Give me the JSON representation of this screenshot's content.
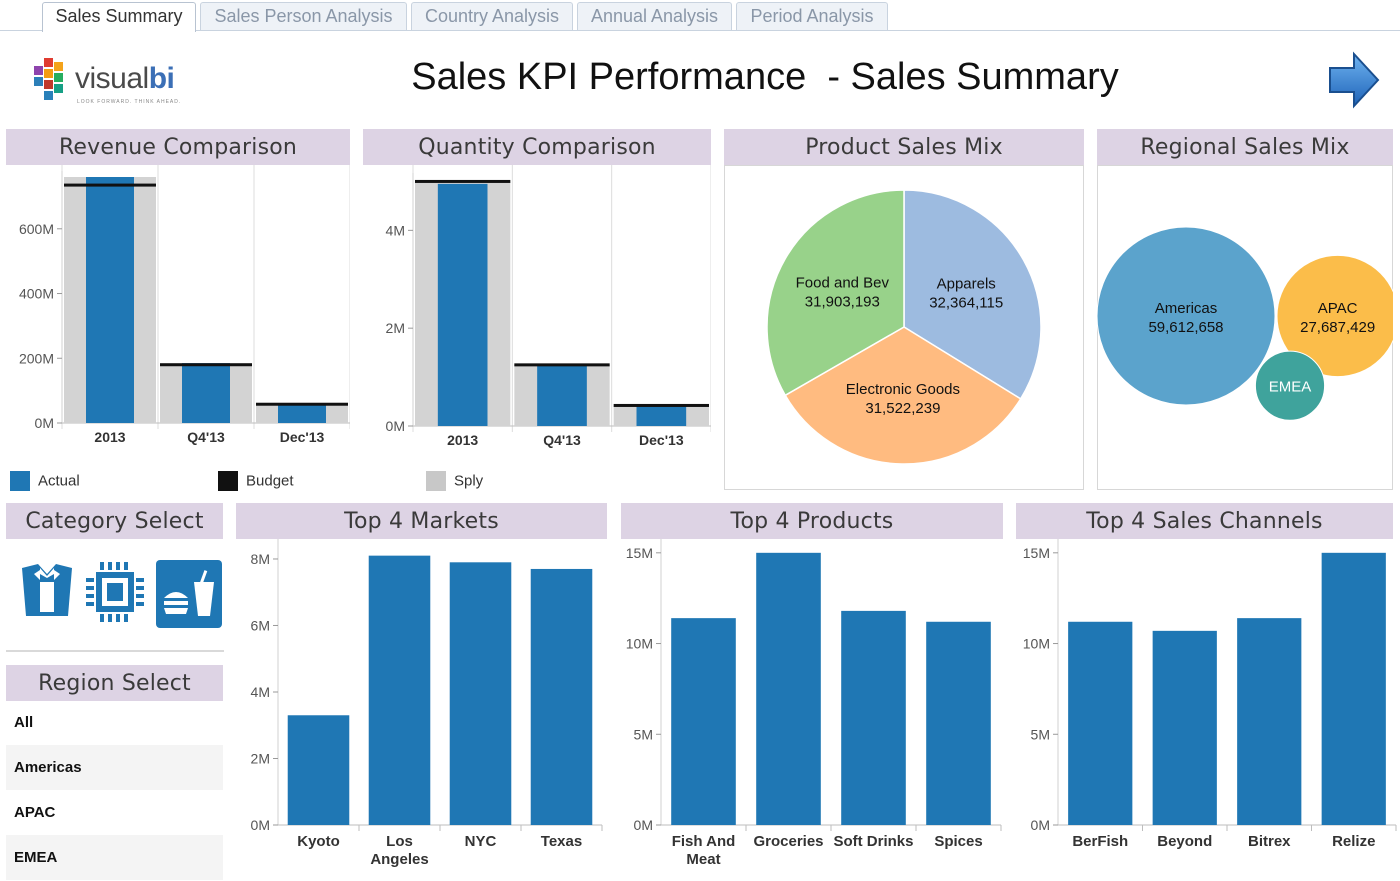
{
  "tabs": [
    {
      "label": "Sales Summary",
      "active": true
    },
    {
      "label": "Sales Person Analysis",
      "active": false
    },
    {
      "label": "Country Analysis",
      "active": false
    },
    {
      "label": "Annual Analysis",
      "active": false
    },
    {
      "label": "Period Analysis",
      "active": false
    }
  ],
  "brand": {
    "name_a": "visual",
    "name_b": "bi",
    "tagline": "LOOK FORWARD. THINK AHEAD."
  },
  "header": {
    "title": "Sales KPI Performance  - Sales Summary",
    "nav_icon": "next-arrow-icon"
  },
  "colors": {
    "actual": "#1f77b4",
    "budget": "#111111",
    "sply": "#d3d3d3",
    "panel_header": "#ddd3e4"
  },
  "panels": {
    "revenue": "Revenue Comparison",
    "quantity": "Quantity Comparison",
    "product_mix": "Product Sales Mix",
    "regional_mix": "Regional Sales  Mix",
    "category_select": "Category Select",
    "region_select": "Region Select",
    "top_markets": "Top 4 Markets",
    "top_products": "Top 4 Products",
    "top_channels": "Top 4 Sales Channels"
  },
  "legend": [
    {
      "label": "Actual",
      "color": "#1f77b4"
    },
    {
      "label": "Budget",
      "color": "#111111"
    },
    {
      "label": "Sply",
      "color": "#c8c8c8"
    }
  ],
  "categories": [
    {
      "name": "apparel-category-icon"
    },
    {
      "name": "electronics-category-icon"
    },
    {
      "name": "food-category-icon"
    }
  ],
  "regions": [
    "All",
    "Americas",
    "APAC",
    "EMEA"
  ],
  "chart_data": [
    {
      "id": "revenue",
      "type": "bar",
      "title": "Revenue Comparison",
      "categories": [
        "2013",
        "Q4'13",
        "Dec'13"
      ],
      "series": [
        {
          "name": "Actual",
          "values": [
            760000000,
            185000000,
            55000000
          ]
        },
        {
          "name": "Budget",
          "values": [
            735000000,
            180000000,
            58000000
          ]
        },
        {
          "name": "Sply",
          "values": [
            760000000,
            185000000,
            55000000
          ]
        }
      ],
      "yticks": [
        0,
        200000000,
        400000000,
        600000000
      ],
      "ytick_labels": [
        "0M",
        "200M",
        "400M",
        "600M"
      ],
      "ylim": [
        0,
        760000000
      ]
    },
    {
      "id": "quantity",
      "type": "bar",
      "title": "Quantity Comparison",
      "categories": [
        "2013",
        "Q4'13",
        "Dec'13"
      ],
      "series": [
        {
          "name": "Actual",
          "values": [
            4950000,
            1230000,
            400000
          ]
        },
        {
          "name": "Budget",
          "values": [
            5000000,
            1250000,
            420000
          ]
        },
        {
          "name": "Sply",
          "values": [
            5000000,
            1250000,
            420000
          ]
        }
      ],
      "yticks": [
        0,
        2000000,
        4000000
      ],
      "ytick_labels": [
        "0M",
        "2M",
        "4M"
      ],
      "ylim": [
        0,
        5050000
      ]
    },
    {
      "id": "product_mix",
      "type": "pie",
      "title": "Product Sales Mix",
      "slices": [
        {
          "label": "Apparels",
          "value": 32364115,
          "value_label": "32,364,115",
          "color": "#9dbbe0"
        },
        {
          "label": "Electronic Goods",
          "value": 31522239,
          "value_label": "31,522,239",
          "color": "#ffbb80"
        },
        {
          "label": "Food  and Bev",
          "value": 31903193,
          "value_label": "31,903,193",
          "color": "#98d28a"
        }
      ]
    },
    {
      "id": "regional_mix",
      "type": "bubble",
      "title": "Regional Sales  Mix",
      "bubbles": [
        {
          "label": "Americas",
          "value": 59612658,
          "value_label": "59,612,658",
          "color": "#5ba3cc"
        },
        {
          "label": "APAC",
          "value": 27687429,
          "value_label": "27,687,429",
          "color": "#fbbd4a"
        },
        {
          "label": "EMEA",
          "value": 9000000,
          "value_label": "",
          "color": "#3fa39c"
        }
      ]
    },
    {
      "id": "top_markets",
      "type": "bar",
      "title": "Top 4 Markets",
      "categories": [
        "Kyoto",
        "Los Angeles",
        "NYC",
        "Texas"
      ],
      "category_lines": [
        [
          "Kyoto"
        ],
        [
          "Los",
          "Angeles"
        ],
        [
          "NYC"
        ],
        [
          "Texas"
        ]
      ],
      "values": [
        3300000,
        8100000,
        7900000,
        7700000
      ],
      "yticks": [
        0,
        2000000,
        4000000,
        6000000,
        8000000
      ],
      "ytick_labels": [
        "0M",
        "2M",
        "4M",
        "6M",
        "8M"
      ],
      "ylim": [
        0,
        8300000
      ]
    },
    {
      "id": "top_products",
      "type": "bar",
      "title": "Top 4 Products",
      "categories": [
        "Fish And Meat",
        "Groceries",
        "Soft Drinks",
        "Spices"
      ],
      "category_lines": [
        [
          "Fish And",
          "Meat"
        ],
        [
          "Groceries"
        ],
        [
          "Soft Drinks"
        ],
        [
          "Spices"
        ]
      ],
      "values": [
        11400000,
        15000000,
        11800000,
        11200000
      ],
      "yticks": [
        0,
        5000000,
        10000000,
        15000000
      ],
      "ytick_labels": [
        "0M",
        "5M",
        "10M",
        "15M"
      ],
      "ylim": [
        0,
        15100000
      ]
    },
    {
      "id": "top_channels",
      "type": "bar",
      "title": "Top 4 Sales Channels",
      "categories": [
        "BerFish",
        "Beyond",
        "Bitrex",
        "Relize"
      ],
      "category_lines": [
        [
          "BerFish"
        ],
        [
          "Beyond"
        ],
        [
          "Bitrex"
        ],
        [
          "Relize"
        ]
      ],
      "values": [
        11200000,
        10700000,
        11400000,
        15000000
      ],
      "yticks": [
        0,
        5000000,
        10000000,
        15000000
      ],
      "ytick_labels": [
        "0M",
        "5M",
        "10M",
        "15M"
      ],
      "ylim": [
        0,
        15100000
      ]
    }
  ]
}
